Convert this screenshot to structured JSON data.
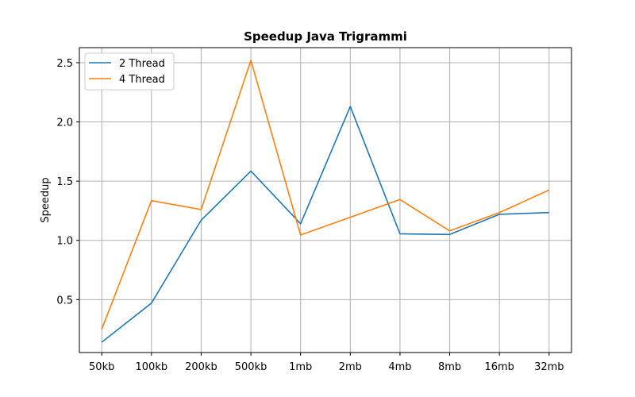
{
  "chart_data": {
    "type": "line",
    "title": "Speedup Java Trigrammi",
    "xlabel": "",
    "ylabel": "Speedup",
    "categories": [
      "50kb",
      "100kb",
      "200kb",
      "500kb",
      "1mb",
      "2mb",
      "4mb",
      "8mb",
      "16mb",
      "32mb"
    ],
    "series": [
      {
        "name": "2 Thread",
        "color": "#1f77b4",
        "values": [
          0.14,
          0.47,
          1.17,
          1.585,
          1.14,
          2.13,
          1.055,
          1.05,
          1.22,
          1.235
        ]
      },
      {
        "name": "4 Thread",
        "color": "#ff7f0e",
        "values": [
          0.25,
          1.335,
          1.26,
          2.52,
          1.045,
          1.195,
          1.345,
          1.08,
          1.235,
          1.425
        ]
      }
    ],
    "ylim": [
      0.053,
      2.627
    ],
    "yticks": [
      "0.5",
      "1.0",
      "1.5",
      "2.0",
      "2.5"
    ],
    "grid": true,
    "legend_position": "upper-left"
  }
}
